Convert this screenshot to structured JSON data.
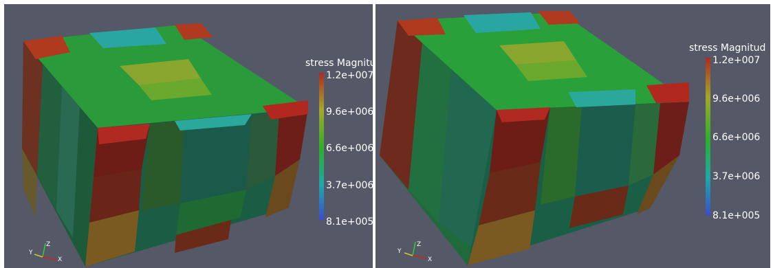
{
  "viewports": [
    {
      "legend": {
        "title": "stress Magnitu",
        "ticks": [
          "1.2e+007",
          "9.6e+006",
          "6.6e+006",
          "3.7e+006",
          "8.1e+005"
        ]
      },
      "axes": {
        "x": "X",
        "y": "Y",
        "z": "Z"
      }
    },
    {
      "legend": {
        "title": "stress Magnitud",
        "ticks": [
          "1.2e+007",
          "9.6e+006",
          "6.6e+006",
          "3.7e+006",
          "8.1e+005"
        ]
      },
      "axes": {
        "x": "X",
        "y": "Y",
        "z": "Z"
      }
    }
  ],
  "colors": {
    "background": "#545867",
    "scale": [
      "#3a4ccf",
      "#1fa8a8",
      "#2ab02a",
      "#a2a82a",
      "#b02a1e"
    ]
  }
}
